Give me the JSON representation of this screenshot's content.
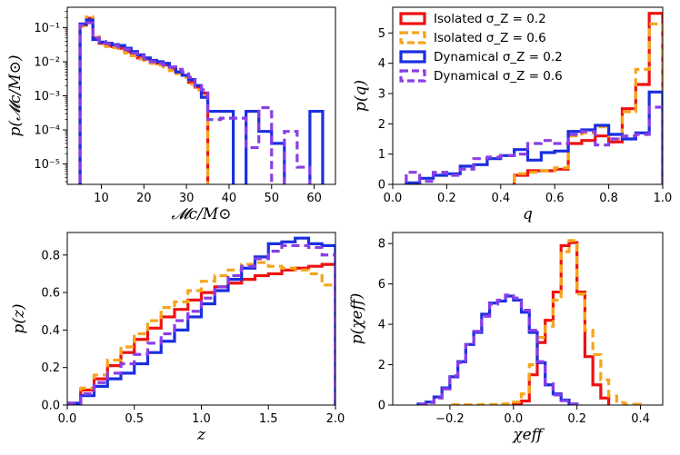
{
  "colors": {
    "isolated_low": "#ee1111",
    "isolated_high": "#f5a51a",
    "dynamical_low": "#1a2ee0",
    "dynamical_high": "#8a3ee6"
  },
  "legend": [
    {
      "label": "Isolated σ_Z = 0.2",
      "style": "solid",
      "color": "#ee1111"
    },
    {
      "label": "Isolated σ_Z = 0.6",
      "style": "dashed",
      "color": "#f5a51a"
    },
    {
      "label": "Dynamical σ_Z = 0.2",
      "style": "solid",
      "color": "#1a2ee0"
    },
    {
      "label": "Dynamical σ_Z = 0.6",
      "style": "dashed",
      "color": "#8a3ee6"
    }
  ],
  "chart_data": [
    {
      "type": "step-histogram",
      "panel": "chirp-mass",
      "xlabel": "𝓜c/M⊙",
      "ylabel": "p(𝓜c/M⊙)",
      "yscale": "log",
      "xlim": [
        2,
        65
      ],
      "ylim": [
        2.5e-06,
        0.4
      ],
      "xticks": [
        10,
        20,
        30,
        40,
        50,
        60
      ],
      "xtick_labels": [
        "10",
        "20",
        "30",
        "40",
        "50",
        "60"
      ],
      "yticks": [
        1e-05,
        0.0001,
        0.001,
        0.01,
        0.1
      ],
      "ytick_labels": [
        "10⁻⁵",
        "10⁻⁴",
        "10⁻³",
        "10⁻²",
        "10⁻¹"
      ],
      "series": [
        {
          "name": "Isolated σ_Z = 0.2",
          "edges": [
            5,
            6.5,
            8,
            9.5,
            11,
            12.5,
            14,
            15.5,
            17,
            18.5,
            20,
            21.5,
            23,
            24.5,
            26,
            27.5,
            29,
            30.5,
            32,
            33.5,
            35
          ],
          "values": [
            0.12,
            0.19,
            0.05,
            0.035,
            0.03,
            0.028,
            0.025,
            0.02,
            0.017,
            0.013,
            0.012,
            0.01,
            0.009,
            0.008,
            0.006,
            0.005,
            0.004,
            0.0025,
            0.0018,
            0.0012
          ]
        },
        {
          "name": "Isolated σ_Z = 0.6",
          "edges": [
            5,
            6.5,
            8,
            9.5,
            11,
            12.5,
            14,
            15.5,
            17,
            18.5,
            20,
            21.5,
            23,
            24.5,
            26,
            27.5,
            29,
            30.5,
            32,
            33.5,
            35
          ],
          "values": [
            0.11,
            0.21,
            0.055,
            0.033,
            0.028,
            0.026,
            0.022,
            0.018,
            0.015,
            0.012,
            0.011,
            0.009,
            0.008,
            0.007,
            0.0055,
            0.0045,
            0.0035,
            0.0022,
            0.0015,
            0.001
          ]
        },
        {
          "name": "Dynamical σ_Z = 0.2",
          "edges": [
            5,
            6.5,
            8,
            9.5,
            11,
            12.5,
            14,
            15.5,
            17,
            18.5,
            20,
            21.5,
            23,
            24.5,
            26,
            27.5,
            29,
            30.5,
            32,
            33.5,
            35,
            38,
            41,
            44,
            47,
            50,
            53,
            56,
            59,
            62
          ],
          "values": [
            0.13,
            0.17,
            0.045,
            0.038,
            0.035,
            0.032,
            0.03,
            0.025,
            0.02,
            0.016,
            0.013,
            0.011,
            0.01,
            0.009,
            0.007,
            0.005,
            0.004,
            0.003,
            0.002,
            0.0009,
            0.00035,
            0.00035,
            1e-09,
            0.00035,
            9e-05,
            4e-05,
            1e-09,
            1e-09,
            0.00035
          ]
        },
        {
          "name": "Dynamical σ_Z = 0.6",
          "edges": [
            5,
            6.5,
            8,
            9.5,
            11,
            12.5,
            14,
            15.5,
            17,
            18.5,
            20,
            21.5,
            23,
            24.5,
            26,
            27.5,
            29,
            30.5,
            32,
            33.5,
            35,
            38,
            41,
            44,
            47,
            50,
            53,
            56,
            59,
            62
          ],
          "values": [
            0.12,
            0.14,
            0.05,
            0.04,
            0.034,
            0.03,
            0.027,
            0.023,
            0.018,
            0.015,
            0.012,
            0.01,
            0.009,
            0.008,
            0.007,
            0.006,
            0.005,
            0.0035,
            0.002,
            0.0015,
            0.0002,
            0.00022,
            0.00022,
            3e-05,
            0.00045,
            1e-09,
            9e-05,
            8e-06,
            1e-09
          ]
        }
      ]
    },
    {
      "type": "step-histogram",
      "panel": "mass-ratio",
      "xlabel": "q",
      "ylabel": "p(q)",
      "yscale": "linear",
      "xlim": [
        0,
        1
      ],
      "ylim": [
        0,
        5.85
      ],
      "xticks": [
        0,
        0.2,
        0.4,
        0.6,
        0.8,
        1
      ],
      "xtick_labels": [
        "0.0",
        "0.2",
        "0.4",
        "0.6",
        "0.8",
        "1.0"
      ],
      "yticks": [
        0,
        1,
        2,
        3,
        4,
        5
      ],
      "ytick_labels": [
        "0",
        "1",
        "2",
        "3",
        "4",
        "5"
      ],
      "series": [
        {
          "name": "Isolated σ_Z = 0.2",
          "edges": [
            0.45,
            0.5,
            0.55,
            0.6,
            0.65,
            0.7,
            0.75,
            0.8,
            0.85,
            0.9,
            0.95,
            1.0
          ],
          "values": [
            0.3,
            0.45,
            0.45,
            0.5,
            1.35,
            1.45,
            1.6,
            1.4,
            2.5,
            3.3,
            5.65
          ]
        },
        {
          "name": "Isolated σ_Z = 0.6",
          "edges": [
            0.45,
            0.5,
            0.55,
            0.6,
            0.65,
            0.7,
            0.75,
            0.8,
            0.85,
            0.9,
            0.95,
            1.0
          ],
          "values": [
            0.35,
            0.4,
            0.45,
            0.55,
            1.6,
            1.7,
            1.9,
            1.5,
            2.4,
            3.8,
            5.3
          ]
        },
        {
          "name": "Dynamical σ_Z = 0.2",
          "edges": [
            0.05,
            0.1,
            0.15,
            0.2,
            0.25,
            0.3,
            0.35,
            0.4,
            0.45,
            0.5,
            0.55,
            0.6,
            0.65,
            0.7,
            0.75,
            0.8,
            0.85,
            0.9,
            0.95,
            1.0
          ],
          "values": [
            0.05,
            0.2,
            0.3,
            0.35,
            0.6,
            0.65,
            0.85,
            0.95,
            1.15,
            0.8,
            1.05,
            1.1,
            1.75,
            1.8,
            1.95,
            1.65,
            1.5,
            1.7,
            3.05
          ]
        },
        {
          "name": "Dynamical σ_Z = 0.6",
          "edges": [
            0.05,
            0.1,
            0.15,
            0.2,
            0.25,
            0.3,
            0.35,
            0.4,
            0.45,
            0.5,
            0.55,
            0.6,
            0.65,
            0.7,
            0.75,
            0.8,
            0.85,
            0.9,
            0.95,
            1.0
          ],
          "values": [
            0.4,
            0.1,
            0.4,
            0.3,
            0.5,
            0.85,
            0.9,
            0.95,
            1.0,
            1.35,
            1.45,
            1.35,
            1.65,
            1.75,
            1.3,
            1.5,
            1.6,
            1.65,
            2.55
          ]
        }
      ]
    },
    {
      "type": "step-histogram",
      "panel": "redshift",
      "xlabel": "z",
      "ylabel": "p(z)",
      "yscale": "linear",
      "xlim": [
        0,
        2
      ],
      "ylim": [
        0,
        0.92
      ],
      "xticks": [
        0,
        0.5,
        1,
        1.5,
        2
      ],
      "xtick_labels": [
        "0.0",
        "0.5",
        "1.0",
        "1.5",
        "2.0"
      ],
      "yticks": [
        0,
        0.2,
        0.4,
        0.6,
        0.8
      ],
      "ytick_labels": [
        "0.0",
        "0.2",
        "0.4",
        "0.6",
        "0.8"
      ],
      "series": [
        {
          "name": "Isolated σ_Z = 0.2",
          "edges": [
            0,
            0.1,
            0.2,
            0.3,
            0.4,
            0.5,
            0.6,
            0.7,
            0.8,
            0.9,
            1.0,
            1.1,
            1.2,
            1.3,
            1.4,
            1.5,
            1.6,
            1.7,
            1.8,
            1.9,
            2.0
          ],
          "values": [
            0.01,
            0.08,
            0.14,
            0.21,
            0.28,
            0.35,
            0.41,
            0.47,
            0.51,
            0.56,
            0.6,
            0.63,
            0.65,
            0.67,
            0.69,
            0.7,
            0.72,
            0.73,
            0.74,
            0.75
          ]
        },
        {
          "name": "Isolated σ_Z = 0.6",
          "edges": [
            0,
            0.1,
            0.2,
            0.3,
            0.4,
            0.5,
            0.6,
            0.7,
            0.8,
            0.9,
            1.0,
            1.1,
            1.2,
            1.3,
            1.4,
            1.5,
            1.6,
            1.7,
            1.8,
            1.9,
            2.0
          ],
          "values": [
            0.01,
            0.09,
            0.16,
            0.24,
            0.31,
            0.38,
            0.45,
            0.52,
            0.55,
            0.61,
            0.66,
            0.69,
            0.72,
            0.75,
            0.76,
            0.74,
            0.73,
            0.72,
            0.7,
            0.64
          ]
        },
        {
          "name": "Dynamical σ_Z = 0.2",
          "edges": [
            0,
            0.1,
            0.2,
            0.3,
            0.4,
            0.5,
            0.6,
            0.7,
            0.8,
            0.9,
            1.0,
            1.1,
            1.2,
            1.3,
            1.4,
            1.5,
            1.6,
            1.7,
            1.8,
            1.9,
            2.0
          ],
          "values": [
            0.01,
            0.05,
            0.1,
            0.14,
            0.17,
            0.22,
            0.28,
            0.34,
            0.4,
            0.47,
            0.54,
            0.61,
            0.67,
            0.73,
            0.79,
            0.86,
            0.87,
            0.89,
            0.86,
            0.85
          ]
        },
        {
          "name": "Dynamical σ_Z = 0.6",
          "edges": [
            0,
            0.1,
            0.2,
            0.3,
            0.4,
            0.5,
            0.6,
            0.7,
            0.8,
            0.9,
            1.0,
            1.1,
            1.2,
            1.3,
            1.4,
            1.5,
            1.6,
            1.7,
            1.8,
            1.9,
            2.0
          ],
          "values": [
            0.01,
            0.06,
            0.12,
            0.17,
            0.22,
            0.27,
            0.33,
            0.38,
            0.45,
            0.5,
            0.57,
            0.63,
            0.69,
            0.74,
            0.78,
            0.82,
            0.85,
            0.85,
            0.84,
            0.8
          ]
        }
      ]
    },
    {
      "type": "step-histogram",
      "panel": "effective-spin",
      "xlabel": "χeff",
      "ylabel": "p(χeff)",
      "yscale": "linear",
      "xlim": [
        -0.38,
        0.47
      ],
      "ylim": [
        0,
        8.55
      ],
      "xticks": [
        -0.2,
        0,
        0.2,
        0.4
      ],
      "xtick_labels": [
        "−0.2",
        "0.0",
        "0.2",
        "0.4"
      ],
      "yticks": [
        0,
        2,
        4,
        6,
        8
      ],
      "ytick_labels": [
        "0",
        "2",
        "4",
        "6",
        "8"
      ],
      "series": [
        {
          "name": "Isolated σ_Z = 0.2",
          "edges": [
            0,
            0.025,
            0.05,
            0.075,
            0.1,
            0.125,
            0.15,
            0.175,
            0.2,
            0.225,
            0.25,
            0.275,
            0.3
          ],
          "values": [
            0.02,
            0.2,
            1.5,
            3.1,
            4.2,
            5.6,
            7.9,
            8.05,
            5.6,
            2.4,
            1.0,
            0.35
          ]
        },
        {
          "name": "Isolated σ_Z = 0.6",
          "edges": [
            -0.2,
            -0.1,
            -0.05,
            0,
            0.025,
            0.05,
            0.075,
            0.1,
            0.125,
            0.15,
            0.175,
            0.2,
            0.225,
            0.25,
            0.275,
            0.3,
            0.325,
            0.35,
            0.4
          ],
          "values": [
            0.02,
            0.03,
            0.06,
            0.15,
            0.55,
            2.0,
            3.35,
            3.9,
            5.2,
            7.6,
            8.15,
            5.5,
            3.7,
            2.5,
            1.25,
            0.45,
            0.12,
            0.04
          ]
        },
        {
          "name": "Dynamical σ_Z = 0.2",
          "edges": [
            -0.3,
            -0.275,
            -0.25,
            -0.225,
            -0.2,
            -0.175,
            -0.15,
            -0.125,
            -0.1,
            -0.075,
            -0.05,
            -0.025,
            0,
            0.025,
            0.05,
            0.075,
            0.1,
            0.125,
            0.15,
            0.175,
            0.2
          ],
          "values": [
            0.05,
            0.15,
            0.4,
            0.85,
            1.4,
            2.15,
            3.0,
            3.6,
            4.5,
            5.05,
            5.15,
            5.4,
            5.2,
            4.6,
            3.6,
            2.1,
            1.0,
            0.55,
            0.25,
            0.05
          ]
        },
        {
          "name": "Dynamical σ_Z = 0.6",
          "edges": [
            -0.3,
            -0.275,
            -0.25,
            -0.225,
            -0.2,
            -0.175,
            -0.15,
            -0.125,
            -0.1,
            -0.075,
            -0.05,
            -0.025,
            0,
            0.025,
            0.05,
            0.075,
            0.1,
            0.125,
            0.15,
            0.175,
            0.2
          ],
          "values": [
            0.05,
            0.12,
            0.35,
            0.8,
            1.45,
            2.1,
            3.0,
            3.65,
            4.4,
            5.0,
            5.2,
            5.45,
            5.3,
            4.7,
            3.7,
            2.15,
            1.05,
            0.5,
            0.22,
            0.05
          ]
        }
      ]
    }
  ]
}
